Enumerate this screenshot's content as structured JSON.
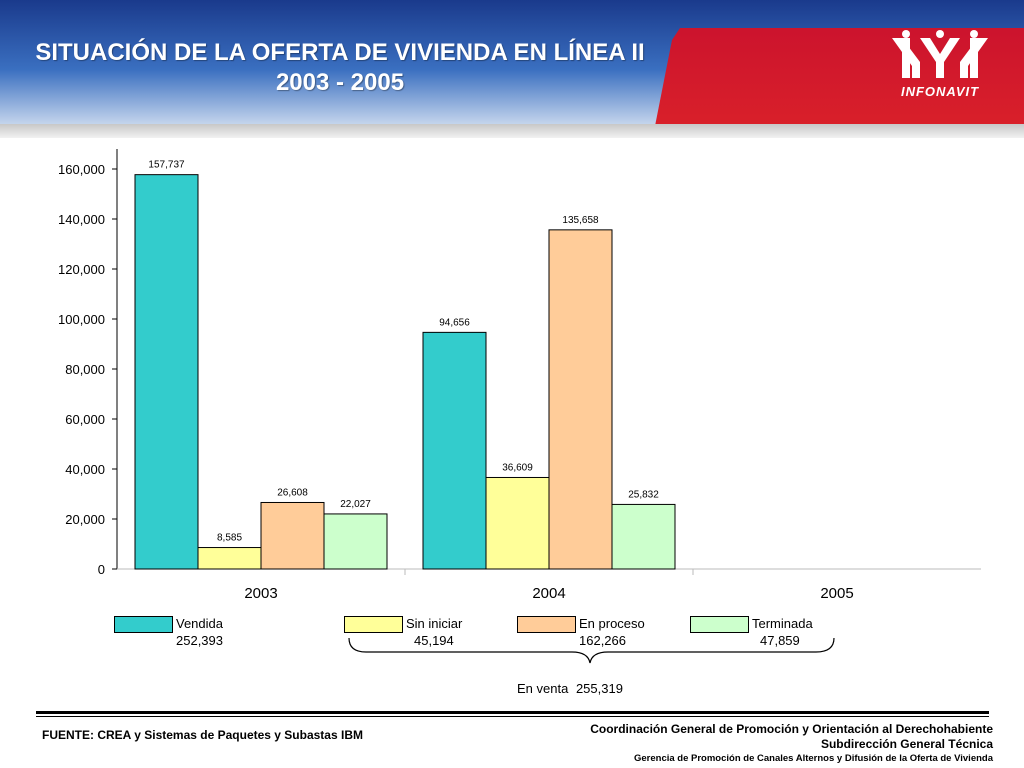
{
  "header": {
    "title_line1": "SITUACIÓN DE LA OFERTA DE VIVIENDA EN LÍNEA II",
    "title_line2": "2003 - 2005",
    "logo_text": "INFONAVIT"
  },
  "colors": {
    "vendida": "#33cccc",
    "sin_iniciar": "#ffff99",
    "en_proceso": "#ffcc99",
    "terminada": "#ccffcc"
  },
  "chart_data": {
    "type": "bar",
    "title": "",
    "xlabel": "",
    "ylabel": "",
    "categories": [
      "2003",
      "2004",
      "2005"
    ],
    "ylim": [
      0,
      160000
    ],
    "yticks": [
      0,
      20000,
      40000,
      60000,
      80000,
      100000,
      120000,
      140000,
      160000
    ],
    "ytick_labels": [
      "0",
      "20,000",
      "40,000",
      "60,000",
      "80,000",
      "100,000",
      "120,000",
      "140,000",
      "160,000"
    ],
    "series": [
      {
        "name": "Vendida",
        "color": "#33cccc",
        "values": [
          157737,
          94656,
          null
        ],
        "labels": [
          "157,737",
          "94,656",
          ""
        ]
      },
      {
        "name": "Sin iniciar",
        "color": "#ffff99",
        "values": [
          8585,
          36609,
          null
        ],
        "labels": [
          "8,585",
          "36,609",
          ""
        ]
      },
      {
        "name": "En proceso",
        "color": "#ffcc99",
        "values": [
          26608,
          135658,
          null
        ],
        "labels": [
          "26,608",
          "135,658",
          ""
        ]
      },
      {
        "name": "Terminada",
        "color": "#ccffcc",
        "values": [
          22027,
          25832,
          null
        ],
        "labels": [
          "22,027",
          "25,832",
          ""
        ]
      }
    ]
  },
  "legend": [
    {
      "label": "Vendida",
      "total": "252,393"
    },
    {
      "label": "Sin iniciar",
      "total": "45,194"
    },
    {
      "label": "En proceso",
      "total": "162,266"
    },
    {
      "label": "Terminada",
      "total": "47,859"
    }
  ],
  "en_venta": {
    "label": "En venta",
    "value": "255,319"
  },
  "footer": {
    "source": "FUENTE: CREA y Sistemas de Paquetes y Subastas IBM",
    "line1": "Coordinación General de Promoción y Orientación al Derechohabiente",
    "line2": "Subdirección General Técnica",
    "line3": "Gerencia de Promoción de Canales Alternos y Difusión de la Oferta de Vivienda"
  }
}
